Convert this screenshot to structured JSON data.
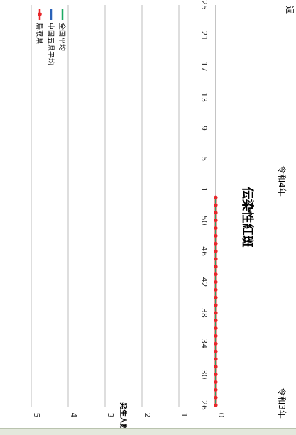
{
  "chart_data": {
    "type": "line",
    "orientation": "rotated-90",
    "title": "伝染性紅斑",
    "ylabel": "発生人数",
    "xlabel": "週",
    "ylim": [
      0,
      5
    ],
    "y_ticks": [
      "0",
      "1",
      "2",
      "3",
      "4",
      "5"
    ],
    "x_ticks": [
      "26",
      "30",
      "34",
      "38",
      "42",
      "46",
      "50",
      "1",
      "5",
      "9",
      "13",
      "17",
      "21",
      "25"
    ],
    "period_labels": [
      "令和3年",
      "令和4年"
    ],
    "grid": true,
    "legend_position": "top-right",
    "x": [
      "26",
      "27",
      "28",
      "29",
      "30",
      "31",
      "32",
      "33",
      "34",
      "35",
      "36",
      "37",
      "38",
      "39",
      "40",
      "41",
      "42",
      "43",
      "44",
      "45",
      "46",
      "47",
      "48",
      "49",
      "50",
      "51",
      "52",
      "1"
    ],
    "series": [
      {
        "name": "鳥取県",
        "color": "#e8262a",
        "marker": "circle",
        "values": [
          0,
          0,
          0,
          0,
          0,
          0,
          0,
          0,
          0,
          0,
          0,
          0,
          0,
          0,
          0,
          0,
          0,
          0,
          0,
          0,
          0,
          0,
          0,
          0,
          0,
          0,
          0,
          0
        ]
      },
      {
        "name": "中国五県平均",
        "color": "#2a62b8",
        "marker": "none",
        "values": [
          0,
          0,
          0,
          0,
          0,
          0,
          0,
          0,
          0,
          0,
          0,
          0,
          0,
          0,
          0,
          0,
          0,
          0,
          0,
          0,
          0,
          0,
          0,
          0,
          0,
          0,
          0,
          0
        ]
      },
      {
        "name": "全国平均",
        "color": "#1daa63",
        "marker": "none",
        "values": [
          0,
          0,
          0,
          0,
          0,
          0,
          0,
          0,
          0,
          0,
          0,
          0,
          0,
          0,
          0,
          0,
          0,
          0,
          0,
          0,
          0,
          0,
          0,
          0,
          0,
          0,
          0,
          0
        ]
      }
    ]
  }
}
